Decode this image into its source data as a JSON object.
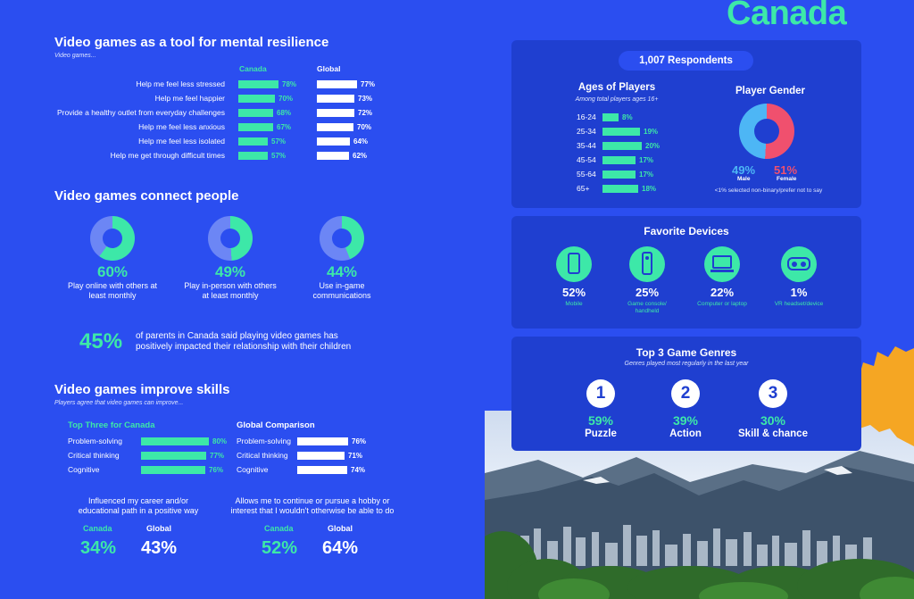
{
  "header": {
    "country_title": "Canada"
  },
  "resilience": {
    "title": "Video games as a tool for mental resilience",
    "subtitle": "Video games...",
    "col_canada": "Canada",
    "col_global": "Global",
    "rows": [
      {
        "label": "Help me feel less stressed",
        "canada": 78,
        "canada_text": "78%",
        "global": 77,
        "global_text": "77%"
      },
      {
        "label": "Help me feel happier",
        "canada": 70,
        "canada_text": "70%",
        "global": 73,
        "global_text": "73%"
      },
      {
        "label": "Provide a healthy outlet from everyday challenges",
        "canada": 68,
        "canada_text": "68%",
        "global": 72,
        "global_text": "72%"
      },
      {
        "label": "Help me feel less anxious",
        "canada": 67,
        "canada_text": "67%",
        "global": 70,
        "global_text": "70%"
      },
      {
        "label": "Help me feel less isolated",
        "canada": 57,
        "canada_text": "57%",
        "global": 64,
        "global_text": "64%"
      },
      {
        "label": "Help me get through difficult times",
        "canada": 57,
        "canada_text": "57%",
        "global": 62,
        "global_text": "62%"
      }
    ]
  },
  "connect": {
    "title": "Video games connect people",
    "items": [
      {
        "value": 60,
        "value_text": "60%",
        "caption": "Play online with others at least monthly"
      },
      {
        "value": 49,
        "value_text": "49%",
        "caption": "Play in-person with others at least monthly"
      },
      {
        "value": 44,
        "value_text": "44%",
        "caption": "Use in-game communications"
      }
    ],
    "parents_stat": "45%",
    "parents_text_1": "of parents in Canada said playing video games has",
    "parents_text_2": "positively impacted their relationship with their children"
  },
  "skills": {
    "title": "Video games improve skills",
    "subtitle": "Players agree that video games can improve...",
    "canada_head": "Top Three for Canada",
    "global_head": "Global Comparison",
    "canada_rows": [
      {
        "label": "Problem-solving",
        "value": 80,
        "value_text": "80%"
      },
      {
        "label": "Critical thinking",
        "value": 77,
        "value_text": "77%"
      },
      {
        "label": "Cognitive",
        "value": 76,
        "value_text": "76%"
      }
    ],
    "global_rows": [
      {
        "label": "Problem-solving",
        "value": 76,
        "value_text": "76%"
      },
      {
        "label": "Critical thinking",
        "value": 71,
        "value_text": "71%"
      },
      {
        "label": "Cognitive",
        "value": 74,
        "value_text": "74%"
      }
    ],
    "career_text_1": "Influenced my career and/or",
    "career_text_2": "educational path in a positive way",
    "career_canada_label": "Canada",
    "career_global_label": "Global",
    "career_canada": "34%",
    "career_global": "43%",
    "hobby_text_1": "Allows me to continue or pursue a hobby or",
    "hobby_text_2": "interest that I wouldn't otherwise be able to do",
    "hobby_canada_label": "Canada",
    "hobby_global_label": "Global",
    "hobby_canada": "52%",
    "hobby_global": "64%"
  },
  "respondents": {
    "badge": "1,007 Respondents",
    "ages_title": "Ages of Players",
    "ages_subtitle": "Among total players ages 16+",
    "ages": [
      {
        "label": "16-24",
        "value": 8,
        "value_text": "8%"
      },
      {
        "label": "25-34",
        "value": 19,
        "value_text": "19%"
      },
      {
        "label": "35-44",
        "value": 20,
        "value_text": "20%"
      },
      {
        "label": "45-54",
        "value": 17,
        "value_text": "17%"
      },
      {
        "label": "55-64",
        "value": 17,
        "value_text": "17%"
      },
      {
        "label": "65+",
        "value": 18,
        "value_text": "18%"
      }
    ],
    "gender_title": "Player Gender",
    "male_pct": "49%",
    "male_label": "Male",
    "female_pct": "51%",
    "female_label": "Female",
    "male_value": 49,
    "female_value": 51,
    "gender_note": "<1% selected non-binary/prefer not to say"
  },
  "devices": {
    "title": "Favorite Devices",
    "items": [
      {
        "icon": "mobile-icon",
        "pct": "52%",
        "label": "Mobile"
      },
      {
        "icon": "console-icon",
        "pct": "25%",
        "label": "Game console/ handheld"
      },
      {
        "icon": "laptop-icon",
        "pct": "22%",
        "label": "Computer or laptop"
      },
      {
        "icon": "vr-headset-icon",
        "pct": "1%",
        "label": "VR headset/device"
      }
    ]
  },
  "genres": {
    "title": "Top 3 Game Genres",
    "subtitle": "Genres played most regularly in the last year",
    "items": [
      {
        "rank": "1",
        "pct": "59%",
        "label": "Puzzle"
      },
      {
        "rank": "2",
        "pct": "39%",
        "label": "Action"
      },
      {
        "rank": "3",
        "pct": "30%",
        "label": "Skill & chance"
      }
    ]
  },
  "colors": {
    "background": "#2b4ef0",
    "panel": "#1f3fd0",
    "teal": "#3de8a8",
    "female_red": "#f0506e",
    "male_blue": "#4db6f5",
    "map_orange": "#f5a623"
  }
}
